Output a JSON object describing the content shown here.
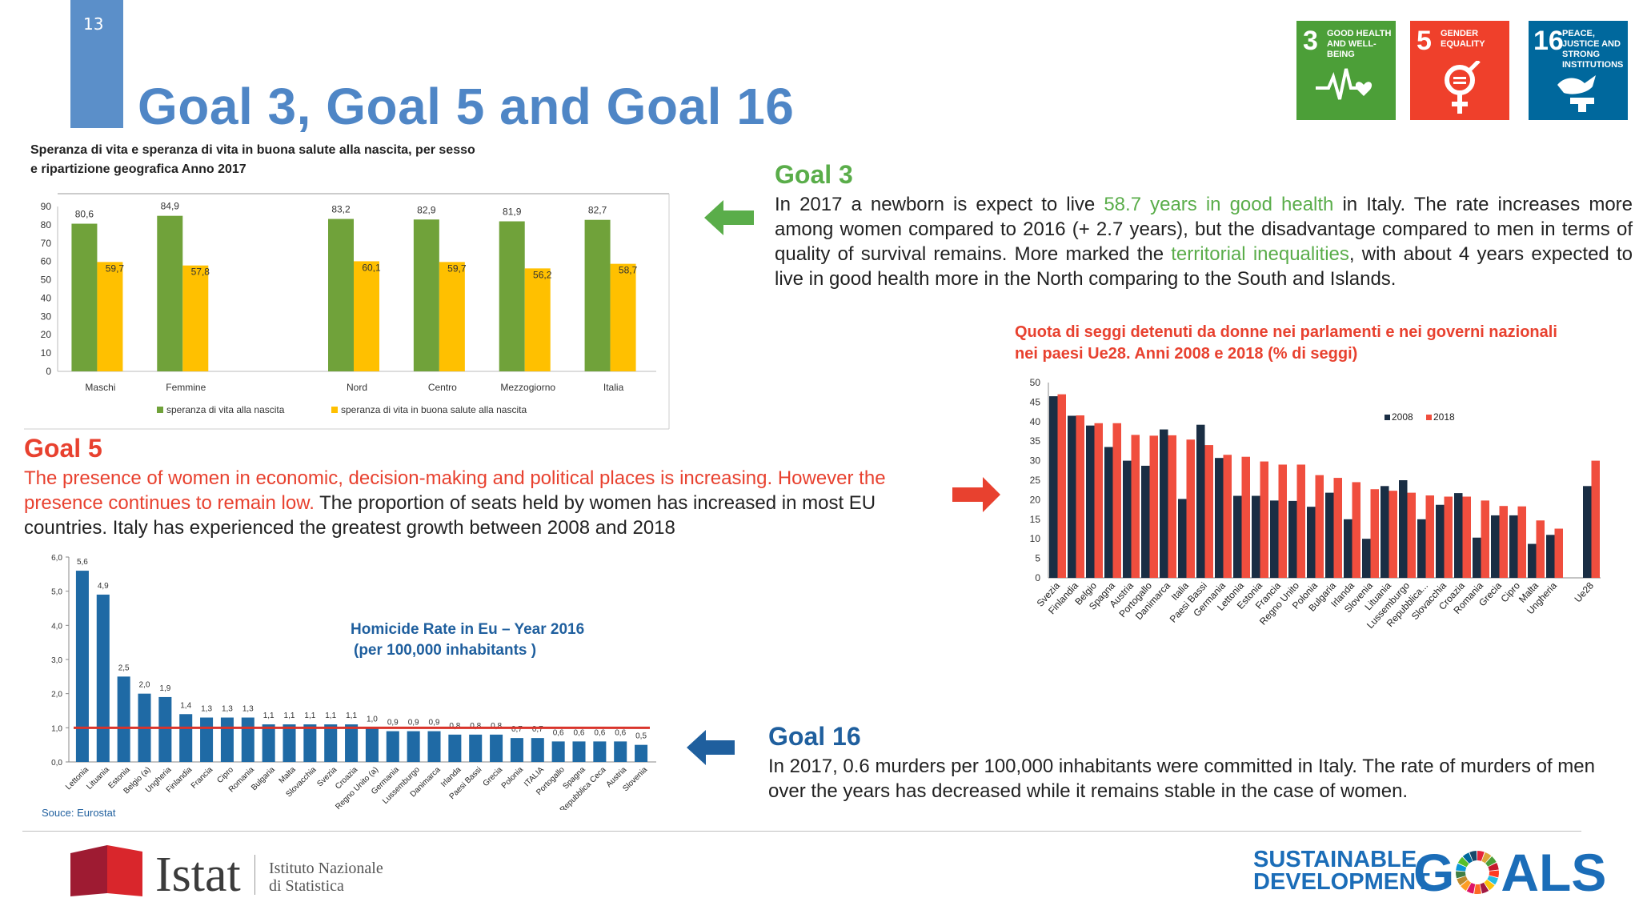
{
  "slide": {
    "number": "13",
    "title": "Goal 3, Goal 5 and Goal 16"
  },
  "sdg_icons": [
    {
      "num": "3",
      "label": "GOOD HEALTH AND WELL-BEING",
      "color": "#4c9f38",
      "icon": "heartbeat-icon"
    },
    {
      "num": "5",
      "label": "GENDER EQUALITY",
      "color": "#ef402b",
      "icon": "gender-equality-icon"
    },
    {
      "num": "16",
      "label": "PEACE, JUSTICE AND STRONG INSTITUTIONS",
      "color": "#00689d",
      "icon": "dove-gavel-icon"
    }
  ],
  "goal3": {
    "heading": "Goal 3",
    "text_1": "In 2017 a newborn is expect to live ",
    "highlight_1": "58.7 years in good health",
    "text_2": " in Italy. The rate increases more among women compared to 2016 (+ 2.7 years), but the disadvantage compared to men in terms of quality of survival remains. More marked the ",
    "highlight_2": "territorial inequalities",
    "text_3": ", with about 4 years expected to live in good health more in the North comparing to the South and Islands.",
    "arrow_color": "#5aad4a"
  },
  "goal5": {
    "heading": "Goal 5",
    "text_red": "The presence of women in economic, decision-making and political places is increasing. However the presence continues to remain low.",
    "text_black": " The proportion of seats held by women has increased in most EU countries. Italy has experienced the greatest growth between 2008 and 2018",
    "arrow_color": "#e8412f"
  },
  "goal16": {
    "heading": "Goal 16",
    "text": "In 2017, 0.6 murders per 100,000 inhabitants were committed in Italy. The rate of murders of men over the years has decreased while it remains stable in the case of women.",
    "arrow_color": "#1f5f9e"
  },
  "chart_data": [
    {
      "type": "bar",
      "title": "Speranza di vita e speranza di vita in buona salute alla nascita, per sesso e ripartizione geografica Anno 2017",
      "title_line1": "Speranza di vita e speranza di vita in buona salute alla nascita, per sesso",
      "title_line2": "e ripartizione geografica Anno 2017",
      "categories": [
        "Maschi",
        "Femmine",
        "",
        "Nord",
        "Centro",
        "Mezzogiorno",
        "Italia"
      ],
      "series": [
        {
          "name": "speranza di vita alla nascita",
          "color": "#70a23a",
          "values": [
            80.6,
            84.9,
            null,
            83.2,
            82.9,
            81.9,
            82.7
          ],
          "labels": [
            "80,6",
            "84,9",
            "",
            "83,2",
            "82,9",
            "81,9",
            "82,7"
          ]
        },
        {
          "name": "speranza di vita in buona salute alla nascita",
          "color": "#ffc000",
          "values": [
            59.7,
            57.8,
            null,
            60.1,
            59.7,
            56.2,
            58.7
          ],
          "labels": [
            "59,7",
            "57,8",
            "",
            "60,1",
            "59,7",
            "56,2",
            "58,7"
          ]
        }
      ],
      "yticks": [
        "0",
        "10",
        "20",
        "30",
        "40",
        "50",
        "60",
        "70",
        "80",
        "90"
      ],
      "ylim": [
        0,
        90
      ],
      "legend": "bottom"
    },
    {
      "type": "bar",
      "title_line1": "Quota di seggi detenuti da donne nei parlamenti e nei governi nazionali",
      "title_line2": "nei paesi Ue28. Anni 2008 e 2018 (% di seggi)",
      "categories": [
        "Svezia",
        "Finlandia",
        "Belgio",
        "Spagna",
        "Austria",
        "Portogallo",
        "Danimarca",
        "Italia",
        "Paesi Bassi",
        "Germania",
        "Lettonia",
        "Estonia",
        "Francia",
        "Regno Unito",
        "Polonia",
        "Bulgaria",
        "Irlanda",
        "Slovenia",
        "Lituania",
        "Lussemburgo",
        "Repubblica...",
        "Slovacchia",
        "Croazia",
        "Romania",
        "Grecia",
        "Cipro",
        "Malta",
        "Ungheria",
        "",
        "Ue28"
      ],
      "series": [
        {
          "name": "2008",
          "color": "#1a2e44",
          "values": [
            46.5,
            41.5,
            39,
            33.5,
            30,
            28.7,
            38,
            20.2,
            39.2,
            30.7,
            21,
            21,
            19.8,
            19.7,
            18.2,
            21.8,
            15,
            10,
            23.5,
            25,
            15,
            18.7,
            21.7,
            10.3,
            16,
            16,
            8.7,
            11,
            null,
            23.5
          ]
        },
        {
          "name": "2018",
          "color": "#f04e3e",
          "values": [
            47,
            41.6,
            39.6,
            39.6,
            36.6,
            36.4,
            36.5,
            35.4,
            34,
            31.5,
            31,
            29.8,
            29,
            29,
            26.3,
            25.6,
            24.5,
            22.7,
            22.3,
            21.8,
            21.1,
            20.8,
            20.8,
            19.8,
            18.4,
            18.3,
            14.7,
            12.6,
            null,
            30
          ]
        }
      ],
      "yticks": [
        "0",
        "5",
        "10",
        "15",
        "20",
        "25",
        "30",
        "35",
        "40",
        "45",
        "50"
      ],
      "ylim": [
        0,
        50
      ],
      "legend": "top-right"
    },
    {
      "type": "bar",
      "title_line1": "Homicide Rate  in Eu – Year 2016",
      "title_line2": "(per 100,000 inhabitants )",
      "source": "Souce: Eurostat",
      "categories": [
        "Lettonia",
        "Lituania",
        "Estonia",
        "Belgio (a)",
        "Ungheria",
        "Finlandia",
        "Francia",
        "Cipro",
        "Romania",
        "Bulgaria",
        "Malta",
        "Slovacchia",
        "Svezia",
        "Croazia",
        "Regno Unito (a)",
        "Germania",
        "Lussemburgo",
        "Danimarca",
        "Irlanda",
        "Paesi Bassi",
        "Grecia",
        "Polonia",
        "ITALIA",
        "Portogallo",
        "Spagna",
        "Repubblica Ceca",
        "Austria",
        "Slovenia"
      ],
      "series": [
        {
          "name": "",
          "color": "#1f6aa5",
          "values": [
            5.6,
            4.9,
            2.5,
            2.0,
            1.9,
            1.4,
            1.3,
            1.3,
            1.3,
            1.1,
            1.1,
            1.1,
            1.1,
            1.1,
            1.0,
            0.9,
            0.9,
            0.9,
            0.8,
            0.8,
            0.8,
            0.7,
            0.7,
            0.6,
            0.6,
            0.6,
            0.6,
            0.5
          ],
          "labels": [
            "5,6",
            "4,9",
            "2,5",
            "2,0",
            "1,9",
            "1,4",
            "1,3",
            "1,3",
            "1,3",
            "1,1",
            "1,1",
            "1,1",
            "1,1",
            "1,1",
            "1,0",
            "0,9",
            "0,9",
            "0,9",
            "0,8",
            "0,8",
            "0,8",
            "0,7",
            "0,7",
            "0,6",
            "0,6",
            "0,6",
            "0,6",
            "0,5"
          ]
        }
      ],
      "reference_line": {
        "value": 1.0,
        "color": "#d9342b"
      },
      "yticks": [
        "0,0",
        "1,0",
        "2,0",
        "3,0",
        "4,0",
        "5,0",
        "6,0"
      ],
      "ylim": [
        0,
        6
      ]
    }
  ],
  "footer": {
    "istat_word": "Istat",
    "istat_sub_1": "Istituto Nazionale",
    "istat_sub_2": "di Statistica",
    "sdg_line1": "SUSTAINABLE",
    "sdg_line2": "DEVELOPMENT",
    "sdg_goals_word": "G●ALS",
    "sdg_goals_ring_colors": [
      "#e5243b",
      "#dda63a",
      "#4c9f38",
      "#c5192d",
      "#ff3a21",
      "#26bde2",
      "#fcc30b",
      "#a21942",
      "#fd6925",
      "#dd1367",
      "#fd9d24",
      "#bf8b2e",
      "#3f7e44",
      "#0a97d9",
      "#56c02b",
      "#00689d",
      "#19486a"
    ]
  }
}
